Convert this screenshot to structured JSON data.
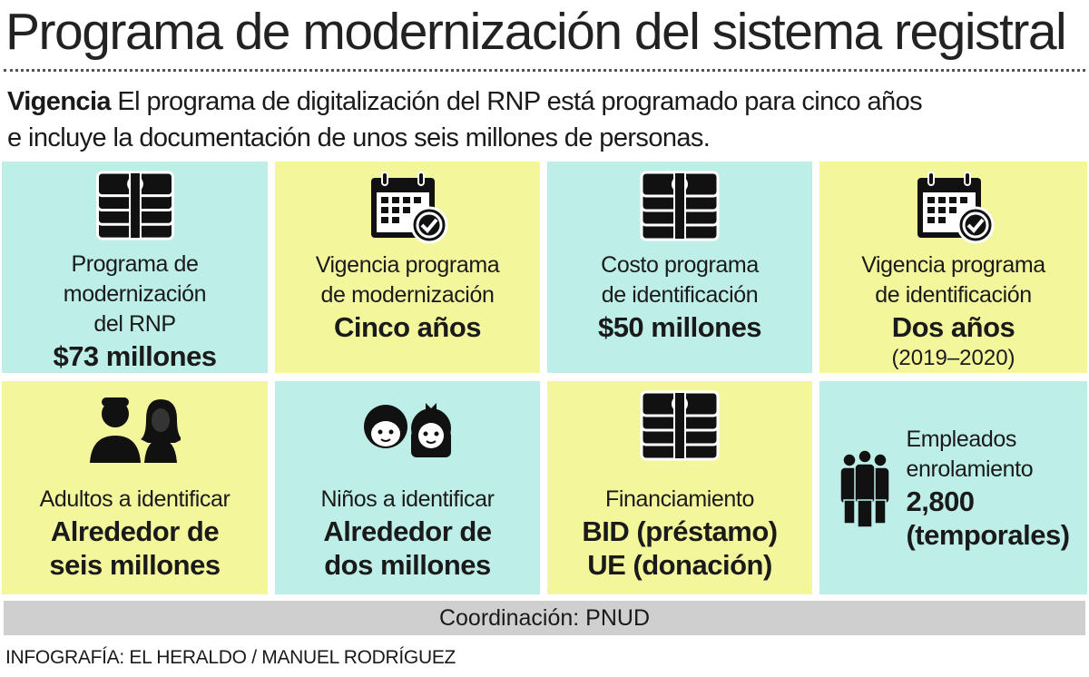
{
  "header": {
    "title": "Programa de modernización del sistema registral"
  },
  "intro": {
    "lead": "Vigencia",
    "text": [
      "El programa de digitalización del RNP está programado para cinco años",
      "e incluye la documentación de unos seis millones de personas."
    ]
  },
  "cards": [
    {
      "label": [
        "Programa de",
        "modernización",
        "del RNP"
      ],
      "value": [
        "$73 millones"
      ]
    },
    {
      "label": [
        "Vigencia programa",
        "de modernización"
      ],
      "value": [
        "Cinco años"
      ]
    },
    {
      "label": [
        "Costo programa",
        "de identificación"
      ],
      "value": [
        "$50 millones"
      ]
    },
    {
      "label": [
        "Vigencia programa",
        "de identificación"
      ],
      "value": [
        "Dos años"
      ],
      "note": "(2019–2020)"
    },
    {
      "label": [
        "Adultos a identificar"
      ],
      "value": [
        "Alrededor de",
        "seis millones"
      ]
    },
    {
      "label": [
        "Niños a identificar"
      ],
      "value": [
        "Alrededor de",
        "dos millones"
      ]
    },
    {
      "label": [
        "Financiamiento"
      ],
      "value": [
        "BID (préstamo)",
        "UE (donación)"
      ]
    },
    {
      "label": [
        "Empleados",
        "enrolamiento"
      ],
      "value": [
        "2,800",
        "(temporales)"
      ]
    }
  ],
  "footer": {
    "coordination": "Coordinación: PNUD",
    "credit": "INFOGRAFÍA: EL HERALDO / MANUEL RODRÍGUEZ"
  }
}
